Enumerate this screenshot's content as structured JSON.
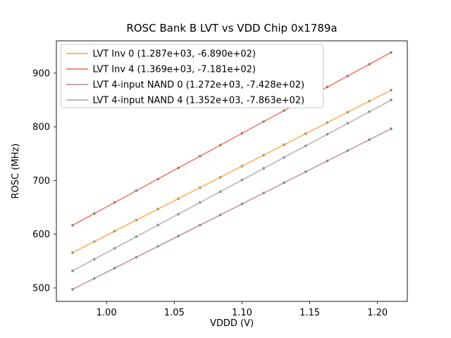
{
  "chart_data": {
    "type": "scatter",
    "title": "ROSC Bank B LVT vs VDD Chip 0x1789a",
    "xlabel": "VDDD (V)",
    "ylabel": "ROSC (MHz)",
    "xlim": [
      0.963,
      1.222
    ],
    "ylim": [
      475,
      960
    ],
    "grid": false,
    "legend_position": "upper left",
    "axis_color": "#000000",
    "scatter_color": "#2e7d60",
    "xtick_values": [
      1.0,
      1.05,
      1.1,
      1.15,
      1.2
    ],
    "xtick_labels": [
      "1.00",
      "1.05",
      "1.10",
      "1.15",
      "1.20"
    ],
    "ytick_values": [
      500,
      600,
      700,
      800,
      900
    ],
    "ytick_labels": [
      "500",
      "600",
      "700",
      "800",
      "900"
    ],
    "x": [
      0.975,
      0.991,
      1.006,
      1.022,
      1.038,
      1.053,
      1.069,
      1.084,
      1.1,
      1.116,
      1.131,
      1.147,
      1.163,
      1.178,
      1.194,
      1.21
    ],
    "series": [
      {
        "name": "LVT Inv 0 (1.287e+03, -6.890e+02)",
        "color": "#ffa54e",
        "slope": 1287.0,
        "intercept": -689.0,
        "values": [
          565.8,
          586.4,
          605.7,
          626.3,
          646.9,
          666.2,
          686.8,
          706.1,
          726.7,
          747.3,
          766.6,
          787.2,
          807.8,
          827.1,
          847.7,
          868.3
        ]
      },
      {
        "name": "LVT Inv 4 (1.369e+03, -7.181e+02)",
        "color": "#ee6c5b",
        "slope": 1369.0,
        "intercept": -718.1,
        "values": [
          616.7,
          638.6,
          659.1,
          681.0,
          702.9,
          723.5,
          745.4,
          765.9,
          787.8,
          809.7,
          830.2,
          852.1,
          874.0,
          894.5,
          916.4,
          938.3
        ]
      },
      {
        "name": "LVT 4-input NAND 0 (1.272e+03, -7.428e+02)",
        "color": "#bc8f8f",
        "slope": 1272.0,
        "intercept": -742.8,
        "values": [
          497.4,
          517.7,
          536.8,
          557.2,
          577.5,
          596.6,
          617.0,
          636.0,
          656.4,
          676.8,
          695.9,
          716.2,
          736.6,
          755.6,
          776.0,
          796.3
        ]
      },
      {
        "name": "LVT 4-input NAND 4 (1.352e+03, -7.863e+02)",
        "color": "#b0b0b0",
        "slope": 1352.0,
        "intercept": -786.3,
        "values": [
          531.9,
          553.5,
          573.8,
          595.5,
          617.1,
          637.4,
          659.0,
          679.3,
          701.0,
          722.6,
          742.9,
          764.5,
          786.2,
          806.5,
          828.1,
          849.8
        ]
      }
    ]
  }
}
